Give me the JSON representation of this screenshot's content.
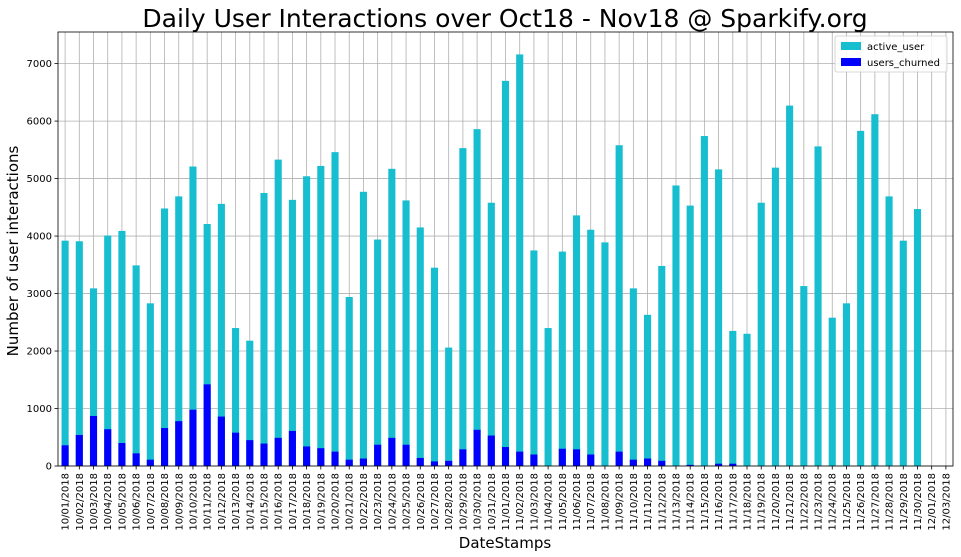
{
  "chart_data": {
    "type": "bar",
    "stacked": false,
    "title": "Daily User Interactions over Oct18 - Nov18 @ Sparkify.org",
    "xlabel": "DateStamps",
    "ylabel": "Number of user interactions",
    "ylim": [
      0,
      7550
    ],
    "yticks": [
      0,
      1000,
      2000,
      3000,
      4000,
      5000,
      6000,
      7000
    ],
    "grid": true,
    "legend_position": "top-right",
    "categories": [
      "10/01/2018",
      "10/02/2018",
      "10/03/2018",
      "10/04/2018",
      "10/05/2018",
      "10/06/2018",
      "10/07/2018",
      "10/08/2018",
      "10/09/2018",
      "10/10/2018",
      "10/11/2018",
      "10/12/2018",
      "10/13/2018",
      "10/14/2018",
      "10/15/2018",
      "10/16/2018",
      "10/17/2018",
      "10/18/2018",
      "10/19/2018",
      "10/20/2018",
      "10/21/2018",
      "10/22/2018",
      "10/23/2018",
      "10/24/2018",
      "10/25/2018",
      "10/26/2018",
      "10/27/2018",
      "10/28/2018",
      "10/29/2018",
      "10/30/2018",
      "10/31/2018",
      "11/01/2018",
      "11/02/2018",
      "11/03/2018",
      "11/04/2018",
      "11/05/2018",
      "11/06/2018",
      "11/07/2018",
      "11/08/2018",
      "11/09/2018",
      "11/10/2018",
      "11/11/2018",
      "11/12/2018",
      "11/13/2018",
      "11/14/2018",
      "11/15/2018",
      "11/16/2018",
      "11/17/2018",
      "11/18/2018",
      "11/19/2018",
      "11/20/2018",
      "11/21/2018",
      "11/22/2018",
      "11/23/2018",
      "11/24/2018",
      "11/25/2018",
      "11/26/2018",
      "11/27/2018",
      "11/28/2018",
      "11/29/2018",
      "11/30/2018",
      "12/01/2018",
      "12/03/2018"
    ],
    "series": [
      {
        "name": "active_user",
        "color": "#17becf",
        "values": [
          3920,
          3910,
          3090,
          4010,
          4090,
          3490,
          2830,
          4480,
          4690,
          5210,
          4210,
          4560,
          2400,
          2180,
          4750,
          5330,
          4630,
          5040,
          5220,
          5460,
          2940,
          4770,
          3940,
          5170,
          4620,
          4150,
          3450,
          2060,
          5530,
          5860,
          4580,
          6700,
          7160,
          3750,
          2400,
          3730,
          4360,
          4110,
          3890,
          5580,
          3090,
          2630,
          3480,
          4880,
          4530,
          5740,
          5160,
          2350,
          2300,
          4580,
          5190,
          6270,
          3130,
          5560,
          2580,
          2830,
          5830,
          6120,
          4690,
          3920,
          4470,
          0,
          0
        ]
      },
      {
        "name": "users_churned",
        "color": "#0000ff",
        "values": [
          360,
          540,
          870,
          640,
          400,
          220,
          110,
          660,
          780,
          980,
          1420,
          860,
          580,
          450,
          390,
          490,
          610,
          340,
          310,
          250,
          110,
          130,
          370,
          490,
          370,
          140,
          80,
          90,
          290,
          630,
          530,
          330,
          250,
          200,
          0,
          300,
          290,
          200,
          0,
          250,
          110,
          130,
          90,
          0,
          20,
          0,
          40,
          40,
          0,
          0,
          0,
          0,
          0,
          0,
          0,
          0,
          0,
          0,
          0,
          0,
          0,
          0,
          0
        ]
      }
    ]
  }
}
